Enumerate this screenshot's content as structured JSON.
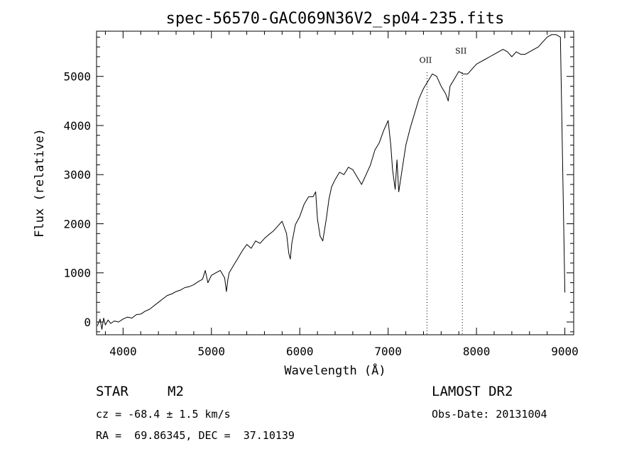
{
  "chart_data": {
    "type": "line",
    "title": "spec-56570-GAC069N36V2_sp04-235.fits",
    "xlabel": "Wavelength (Å)",
    "ylabel": "Flux (relative)",
    "xlim": [
      3700,
      9100
    ],
    "ylim": [
      -260,
      5920
    ],
    "xticks": [
      4000,
      5000,
      6000,
      7000,
      8000,
      9000
    ],
    "yticks": [
      0,
      1000,
      2000,
      3000,
      4000,
      5000
    ],
    "grid": false,
    "series": [
      {
        "x": [
          3710,
          3740,
          3760,
          3780,
          3800,
          3830,
          3860,
          3900,
          3950,
          4000,
          4050,
          4100,
          4150,
          4200,
          4250,
          4300,
          4350,
          4400,
          4450,
          4500,
          4550,
          4600,
          4650,
          4700,
          4750,
          4800,
          4850,
          4900,
          4930,
          4960,
          5000,
          5050,
          5100,
          5150,
          5170,
          5185,
          5200,
          5250,
          5300,
          5350,
          5400,
          5450,
          5500,
          5550,
          5600,
          5650,
          5700,
          5750,
          5800,
          5850,
          5875,
          5893,
          5910,
          5950,
          6000,
          6050,
          6100,
          6150,
          6180,
          6200,
          6230,
          6260,
          6300,
          6330,
          6360,
          6400,
          6450,
          6500,
          6550,
          6600,
          6650,
          6700,
          6750,
          6800,
          6850,
          6900,
          6950,
          7000,
          7030,
          7050,
          7080,
          7100,
          7120,
          7150,
          7200,
          7250,
          7300,
          7350,
          7400,
          7450,
          7500,
          7550,
          7600,
          7650,
          7680,
          7700,
          7750,
          7800,
          7850,
          7900,
          7950,
          8000,
          8050,
          8100,
          8150,
          8200,
          8250,
          8300,
          8350,
          8400,
          8450,
          8500,
          8550,
          8600,
          8650,
          8700,
          8750,
          8800,
          8850,
          8900,
          8950,
          9000
        ],
        "y": [
          -80,
          60,
          -150,
          80,
          -60,
          40,
          -30,
          20,
          0,
          60,
          100,
          80,
          150,
          160,
          220,
          260,
          330,
          400,
          470,
          540,
          570,
          620,
          650,
          700,
          720,
          760,
          820,
          870,
          1050,
          800,
          950,
          1000,
          1050,
          900,
          620,
          850,
          1000,
          1150,
          1300,
          1450,
          1580,
          1500,
          1650,
          1600,
          1700,
          1780,
          1850,
          1950,
          2050,
          1800,
          1400,
          1280,
          1600,
          1980,
          2150,
          2400,
          2550,
          2550,
          2650,
          2100,
          1750,
          1650,
          2100,
          2500,
          2750,
          2900,
          3050,
          3000,
          3150,
          3100,
          2950,
          2800,
          3000,
          3200,
          3500,
          3650,
          3900,
          4100,
          3600,
          3100,
          2700,
          3300,
          2650,
          3000,
          3600,
          3950,
          4250,
          4550,
          4750,
          4900,
          5050,
          5000,
          4800,
          4650,
          4500,
          4800,
          4950,
          5100,
          5050,
          5050,
          5150,
          5250,
          5300,
          5350,
          5400,
          5450,
          5500,
          5550,
          5500,
          5400,
          5500,
          5450,
          5450,
          5500,
          5550,
          5600,
          5700,
          5800,
          5850,
          5850,
          5800,
          600
        ]
      }
    ],
    "annotations": [
      {
        "label": "OII",
        "x": 7440
      },
      {
        "label": "SII",
        "x": 7840
      }
    ]
  },
  "info": {
    "object_class": "STAR",
    "subclass": "M2",
    "cz": "cz = -68.4 ± 1.5 km/s",
    "coords": "RA =  69.86345, DEC =  37.10139",
    "survey": "LAMOST DR2",
    "obs_date": "Obs-Date: 20131004"
  }
}
